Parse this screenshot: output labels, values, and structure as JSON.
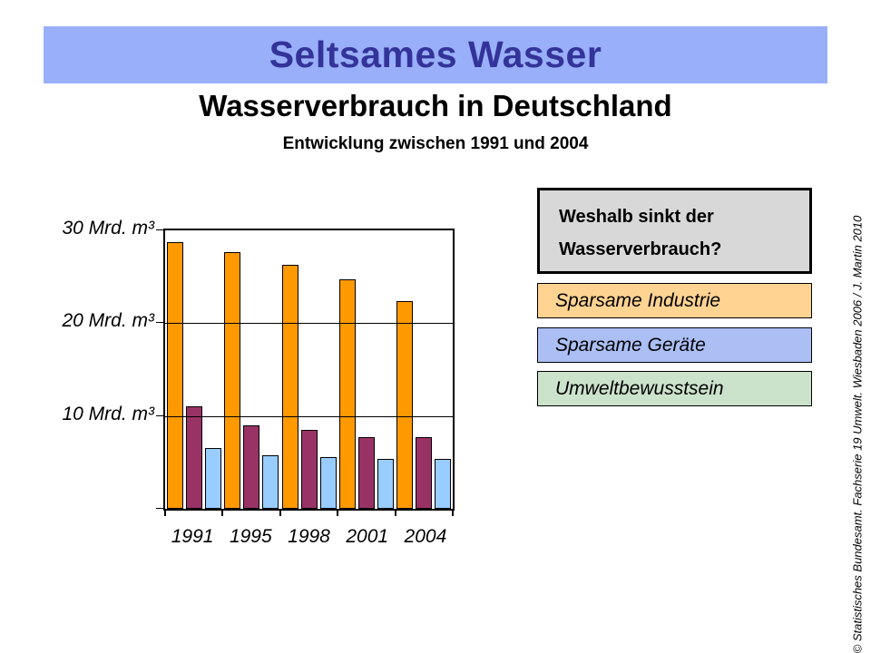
{
  "banner": {
    "title": "Seltsames Wasser",
    "bg": "#99AFFA",
    "text_color": "#333399"
  },
  "heading": {
    "title": "Wasserverbrauch in Deutschland",
    "subtitle": "Entwicklung zwischen 1991 und 2004"
  },
  "chart_data": {
    "type": "bar",
    "title": "Wasserverbrauch in Deutschland",
    "subtitle": "Entwicklung zwischen 1991 und 2004",
    "categories": [
      "1991",
      "1995",
      "1998",
      "2001",
      "2004"
    ],
    "series": [
      {
        "name": "series-orange",
        "color": "#FF9900",
        "values": [
          28.7,
          27.7,
          26.3,
          24.7,
          22.4
        ]
      },
      {
        "name": "series-maroon",
        "color": "#993366",
        "values": [
          11.0,
          9.0,
          8.5,
          7.7,
          7.7
        ]
      },
      {
        "name": "series-lightblue",
        "color": "#99CCFF",
        "values": [
          6.5,
          5.8,
          5.6,
          5.4,
          5.4
        ]
      }
    ],
    "yticks": [
      {
        "label": "30 Mrd. m³",
        "value": 30
      },
      {
        "label": "20 Mrd. m³",
        "value": 20
      },
      {
        "label": "10 Mrd. m³",
        "value": 10
      }
    ],
    "ylim": [
      0,
      30
    ],
    "unit": "Mrd. m³",
    "grid": true,
    "legend": "none"
  },
  "panel": {
    "question": {
      "line1": "Weshalb sinkt der",
      "line2": "Wasserverbrauch?",
      "bg": "#D8D8D8"
    },
    "answers": [
      {
        "label": "Sparsame Industrie",
        "bg": "#FFD391"
      },
      {
        "label": "Sparsame Geräte",
        "bg": "#ABBFF5"
      },
      {
        "label": "Umweltbewusstsein",
        "bg": "#CBE2CB"
      }
    ]
  },
  "credit": "© Statistisches Bundesamt. Fachserie 19 Umwelt. Wiesbaden 2006 / J. Martin 2010"
}
